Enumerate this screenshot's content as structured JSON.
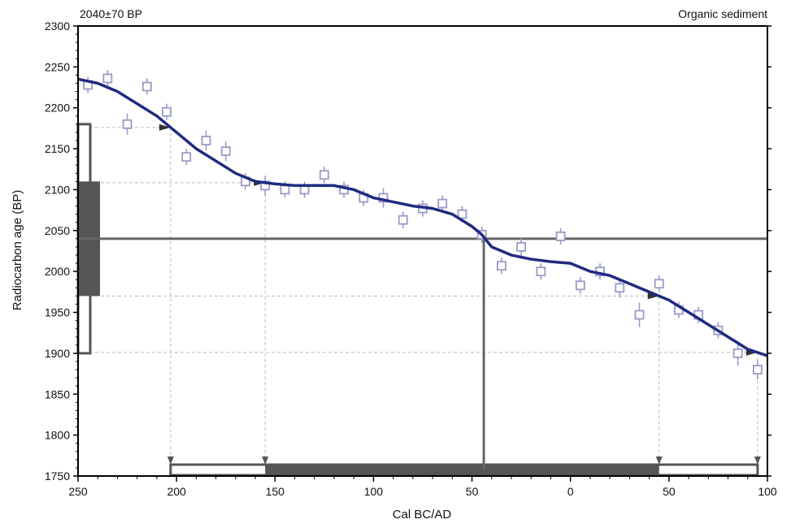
{
  "header": {
    "left": "2040±70 BP",
    "right": "Organic sediment"
  },
  "chart_data": {
    "type": "line",
    "title": "",
    "xlabel": "Cal BC/AD",
    "ylabel": "Radiocarbon age (BP)",
    "x_axis": {
      "tick_values": [
        -250,
        -200,
        -150,
        -100,
        -50,
        0,
        50,
        100
      ],
      "tick_labels": [
        "250",
        "200",
        "150",
        "100",
        "50",
        "0",
        "50",
        "100"
      ],
      "range": [
        -250,
        100
      ],
      "note_unit": "years BC (negative) / AD (positive)"
    },
    "y_axis": {
      "tick_values": [
        1750,
        1800,
        1850,
        1900,
        1950,
        2000,
        2050,
        2100,
        2150,
        2200,
        2250,
        2300
      ],
      "range": [
        1750,
        2300
      ]
    },
    "grid": false,
    "colors": {
      "curve": "#1f2a80",
      "points": "#9a9ac8",
      "frame": "#000000",
      "bars": "#555555",
      "guide": "#bbbbbb"
    },
    "series": [
      {
        "kind": "calibration_curve",
        "x": [
          -250,
          -240,
          -230,
          -220,
          -210,
          -200,
          -190,
          -180,
          -170,
          -160,
          -150,
          -140,
          -130,
          -120,
          -110,
          -100,
          -90,
          -80,
          -70,
          -60,
          -50,
          -45,
          -40,
          -30,
          -20,
          -10,
          0,
          10,
          20,
          30,
          40,
          50,
          60,
          70,
          80,
          90,
          100
        ],
        "y": [
          2235,
          2230,
          2220,
          2205,
          2190,
          2170,
          2150,
          2135,
          2120,
          2110,
          2107,
          2105,
          2105,
          2105,
          2100,
          2090,
          2085,
          2080,
          2077,
          2070,
          2055,
          2045,
          2030,
          2020,
          2015,
          2012,
          2010,
          2000,
          1995,
          1985,
          1975,
          1965,
          1950,
          1935,
          1920,
          1905,
          1897
        ]
      },
      {
        "kind": "measurements",
        "x": [
          -245,
          -235,
          -225,
          -215,
          -205,
          -195,
          -185,
          -175,
          -165,
          -155,
          -145,
          -135,
          -125,
          -115,
          -105,
          -95,
          -85,
          -75,
          -65,
          -55,
          -45,
          -35,
          -25,
          -15,
          -5,
          5,
          15,
          25,
          35,
          45,
          55,
          65,
          75,
          85,
          95
        ],
        "y": [
          2228,
          2236,
          2180,
          2226,
          2195,
          2140,
          2160,
          2147,
          2110,
          2105,
          2100,
          2100,
          2118,
          2100,
          2090,
          2090,
          2063,
          2077,
          2083,
          2070,
          2045,
          2007,
          2030,
          2000,
          2043,
          1983,
          2000,
          1980,
          1947,
          1985,
          1953,
          1947,
          1928,
          1900,
          1880
        ],
        "error": [
          10,
          10,
          13,
          10,
          10,
          10,
          12,
          12,
          10,
          12,
          10,
          10,
          10,
          10,
          10,
          12,
          10,
          10,
          10,
          10,
          10,
          10,
          12,
          10,
          10,
          10,
          10,
          12,
          15,
          10,
          10,
          10,
          10,
          15,
          12
        ]
      }
    ],
    "date_lines": {
      "mean_bp": 2040,
      "intercept_x": -44
    },
    "y_ranges": {
      "one_sigma": [
        1970,
        2110
      ],
      "two_sigma": [
        1900,
        2180
      ]
    },
    "x_ranges": {
      "two_sigma": [
        -203,
        95
      ],
      "one_sigma": [
        -155,
        45
      ]
    }
  }
}
